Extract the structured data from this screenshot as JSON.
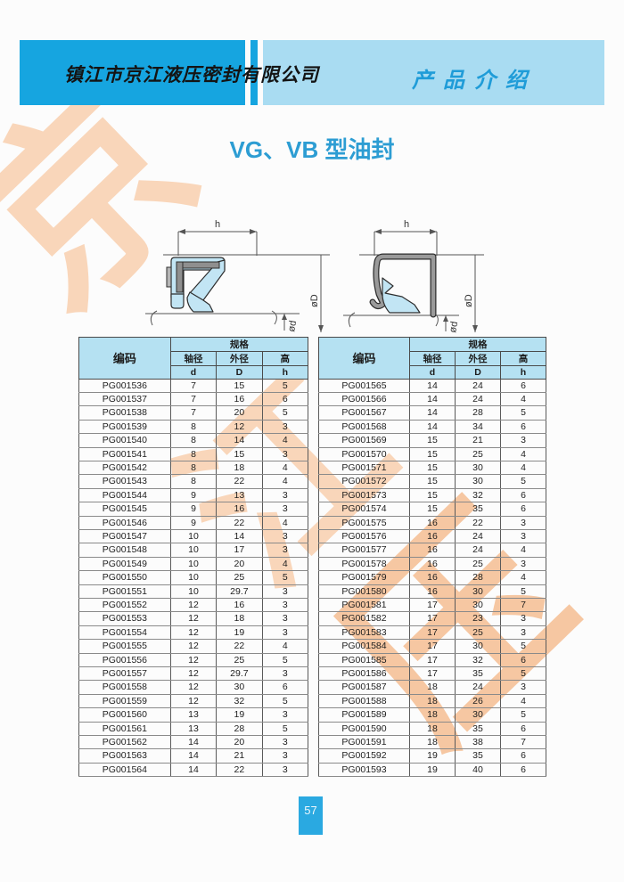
{
  "header": {
    "company": "镇江市京江液压密封有限公司",
    "section": "产品介绍"
  },
  "title": "VG、VB 型油封",
  "watermark": {
    "char1": "京",
    "char2": "江",
    "char3": "压",
    "color": "#f9d6ba"
  },
  "diagram": {
    "dim_width": "h",
    "dim_outer": "øD",
    "dim_shaft": "ød"
  },
  "table_headers": {
    "code": "编码",
    "spec": "规格",
    "shaft": "轴径",
    "outer": "外径",
    "height": "高",
    "d": "d",
    "D": "D",
    "h": "h"
  },
  "tables": {
    "left": {
      "rows": [
        [
          "PG001536",
          "7",
          "15",
          "5"
        ],
        [
          "PG001537",
          "7",
          "16",
          "6"
        ],
        [
          "PG001538",
          "7",
          "20",
          "5"
        ],
        [
          "PG001539",
          "8",
          "12",
          "3"
        ],
        [
          "PG001540",
          "8",
          "14",
          "4"
        ],
        [
          "PG001541",
          "8",
          "15",
          "3"
        ],
        [
          "PG001542",
          "8",
          "18",
          "4"
        ],
        [
          "PG001543",
          "8",
          "22",
          "4"
        ],
        [
          "PG001544",
          "9",
          "13",
          "3"
        ],
        [
          "PG001545",
          "9",
          "16",
          "3"
        ],
        [
          "PG001546",
          "9",
          "22",
          "4"
        ],
        [
          "PG001547",
          "10",
          "14",
          "3"
        ],
        [
          "PG001548",
          "10",
          "17",
          "3"
        ],
        [
          "PG001549",
          "10",
          "20",
          "4"
        ],
        [
          "PG001550",
          "10",
          "25",
          "5"
        ],
        [
          "PG001551",
          "10",
          "29.7",
          "3"
        ],
        [
          "PG001552",
          "12",
          "16",
          "3"
        ],
        [
          "PG001553",
          "12",
          "18",
          "3"
        ],
        [
          "PG001554",
          "12",
          "19",
          "3"
        ],
        [
          "PG001555",
          "12",
          "22",
          "4"
        ],
        [
          "PG001556",
          "12",
          "25",
          "5"
        ],
        [
          "PG001557",
          "12",
          "29.7",
          "3"
        ],
        [
          "PG001558",
          "12",
          "30",
          "6"
        ],
        [
          "PG001559",
          "12",
          "32",
          "5"
        ],
        [
          "PG001560",
          "13",
          "19",
          "3"
        ],
        [
          "PG001561",
          "13",
          "28",
          "5"
        ],
        [
          "PG001562",
          "14",
          "20",
          "3"
        ],
        [
          "PG001563",
          "14",
          "21",
          "3"
        ],
        [
          "PG001564",
          "14",
          "22",
          "3"
        ]
      ]
    },
    "right": {
      "rows": [
        [
          "PG001565",
          "14",
          "24",
          "6"
        ],
        [
          "PG001566",
          "14",
          "24",
          "4"
        ],
        [
          "PG001567",
          "14",
          "28",
          "5"
        ],
        [
          "PG001568",
          "14",
          "34",
          "6"
        ],
        [
          "PG001569",
          "15",
          "21",
          "3"
        ],
        [
          "PG001570",
          "15",
          "25",
          "4"
        ],
        [
          "PG001571",
          "15",
          "30",
          "4"
        ],
        [
          "PG001572",
          "15",
          "30",
          "5"
        ],
        [
          "PG001573",
          "15",
          "32",
          "6"
        ],
        [
          "PG001574",
          "15",
          "35",
          "6"
        ],
        [
          "PG001575",
          "16",
          "22",
          "3"
        ],
        [
          "PG001576",
          "16",
          "24",
          "3"
        ],
        [
          "PG001577",
          "16",
          "24",
          "4"
        ],
        [
          "PG001578",
          "16",
          "25",
          "3"
        ],
        [
          "PG001579",
          "16",
          "28",
          "4"
        ],
        [
          "PG001580",
          "16",
          "30",
          "5"
        ],
        [
          "PG001581",
          "17",
          "30",
          "7"
        ],
        [
          "PG001582",
          "17",
          "23",
          "3"
        ],
        [
          "PG001583",
          "17",
          "25",
          "3"
        ],
        [
          "PG001584",
          "17",
          "30",
          "5"
        ],
        [
          "PG001585",
          "17",
          "32",
          "6"
        ],
        [
          "PG001586",
          "17",
          "35",
          "5"
        ],
        [
          "PG001587",
          "18",
          "24",
          "3"
        ],
        [
          "PG001588",
          "18",
          "26",
          "4"
        ],
        [
          "PG001589",
          "18",
          "30",
          "5"
        ],
        [
          "PG001590",
          "18",
          "35",
          "6"
        ],
        [
          "PG001591",
          "18",
          "38",
          "7"
        ],
        [
          "PG001592",
          "19",
          "35",
          "6"
        ],
        [
          "PG001593",
          "19",
          "40",
          "6"
        ]
      ]
    }
  },
  "footer": {
    "page": "57"
  },
  "colors": {
    "bar_dark": "#16a5e0",
    "bar_light": "#a9dcf2",
    "accent_blue": "#2d9dd3",
    "section_blue": "#1f9cd8",
    "header_cell": "#b5e1f2",
    "page_badge": "#2aa9e1",
    "watermark": "#f9d6ba",
    "seal_blue": "#c2e5f4",
    "metal_gray": "#949494"
  }
}
